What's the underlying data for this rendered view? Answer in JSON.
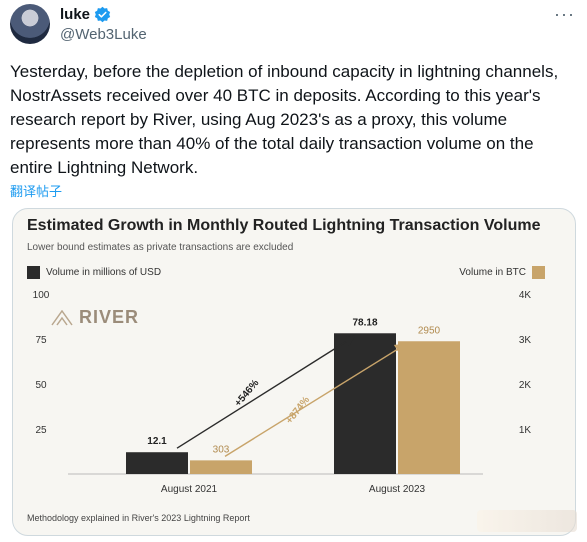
{
  "tweet": {
    "author_name": "luke",
    "handle": "@Web3Luke",
    "more_icon": "more-dots-icon",
    "text": "Yesterday, before the depletion of inbound capacity in lightning channels, NostrAssets received over 40 BTC in deposits. According to this year's research report by River, using Aug 2023's as a proxy, this volume represents more than 40% of the total daily transaction volume on the entire Lightning Network.",
    "translate_label": "翻译帖子"
  },
  "card": {
    "title": "Estimated Growth in Monthly Routed Lightning Transaction Volume",
    "subtitle": "Lower bound estimates as private transactions are excluded",
    "legend_left": "Volume in millions of USD",
    "legend_right": "Volume in BTC",
    "logo_text": "RIVER",
    "methodology": "Methodology explained in River's 2023 Lightning Report",
    "colors": {
      "usd": "#2b2b2b",
      "btc": "#c8a46a"
    }
  },
  "chart_data": {
    "type": "bar",
    "title": "Estimated Growth in Monthly Routed Lightning Transaction Volume",
    "subtitle": "Lower bound estimates as private transactions are excluded",
    "categories": [
      "August 2021",
      "August 2023"
    ],
    "series": [
      {
        "name": "Volume in millions of USD",
        "axis": "left",
        "values": [
          12.1,
          78.18
        ],
        "labels": [
          "12.1",
          "78.18"
        ]
      },
      {
        "name": "Volume in BTC",
        "axis": "right",
        "values": [
          303,
          2950
        ],
        "labels": [
          "303",
          "2950"
        ]
      }
    ],
    "left_axis": {
      "ticks": [
        "100",
        "75",
        "50",
        "25"
      ],
      "values": [
        100,
        75,
        50,
        25
      ],
      "ylim": [
        0,
        100
      ]
    },
    "right_axis": {
      "ticks": [
        "4K",
        "3K",
        "2K",
        "1K"
      ],
      "values": [
        4000,
        3000,
        2000,
        1000
      ],
      "ylim": [
        0,
        4000
      ]
    },
    "annotations": [
      {
        "text": "+546%",
        "series": "Volume in millions of USD"
      },
      {
        "text": "+874%",
        "series": "Volume in BTC"
      }
    ],
    "grid": false
  }
}
